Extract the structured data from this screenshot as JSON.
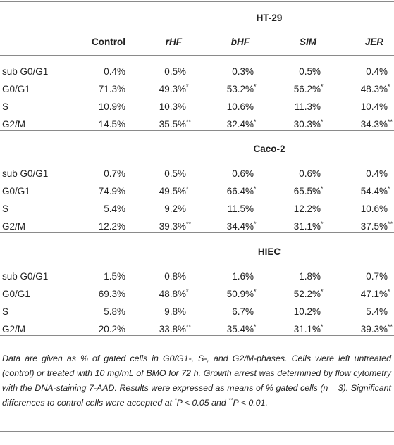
{
  "table": {
    "columns": [
      "Control",
      "rHF",
      "bHF",
      "SIM",
      "JER"
    ],
    "sections": [
      {
        "title": "HT-29",
        "rows": [
          {
            "label": "sub G0/G1",
            "cells": [
              "0.4%",
              "0.5%",
              "0.3%",
              "0.5%",
              "0.4%"
            ]
          },
          {
            "label": "G0/G1",
            "cells": [
              "71.3%",
              {
                "text": "49.3%",
                "mark": "*"
              },
              {
                "text": "53.2%",
                "mark": "*"
              },
              {
                "text": "56.2%",
                "mark": "*"
              },
              {
                "text": "48.3%",
                "mark": "*"
              }
            ]
          },
          {
            "label": "S",
            "cells": [
              "10.9%",
              "10.3%",
              "10.6%",
              "11.3%",
              "10.4%"
            ]
          },
          {
            "label": "G2/M",
            "cells": [
              "14.5%",
              {
                "text": "35.5%",
                "mark": "**"
              },
              {
                "text": "32.4%",
                "mark": "*"
              },
              {
                "text": "30.3%",
                "mark": "*"
              },
              {
                "text": "34.3%",
                "mark": "**"
              }
            ]
          }
        ]
      },
      {
        "title": "Caco-2",
        "rows": [
          {
            "label": "sub G0/G1",
            "cells": [
              "0.7%",
              "0.5%",
              "0.6%",
              "0.6%",
              "0.4%"
            ]
          },
          {
            "label": "G0/G1",
            "cells": [
              "74.9%",
              {
                "text": "49.5%",
                "mark": "*"
              },
              {
                "text": "66.4%",
                "mark": "*"
              },
              {
                "text": "65.5%",
                "mark": "*"
              },
              {
                "text": "54.4%",
                "mark": "*"
              }
            ]
          },
          {
            "label": "S",
            "cells": [
              "5.4%",
              "9.2%",
              "11.5%",
              "12.2%",
              "10.6%"
            ]
          },
          {
            "label": "G2/M",
            "cells": [
              "12.2%",
              {
                "text": "39.3%",
                "mark": "**"
              },
              {
                "text": "34.4%",
                "mark": "*"
              },
              {
                "text": "31.1%",
                "mark": "*"
              },
              {
                "text": "37.5%",
                "mark": "**"
              }
            ]
          }
        ]
      },
      {
        "title": "HIEC",
        "rows": [
          {
            "label": "sub G0/G1",
            "cells": [
              "1.5%",
              "0.8%",
              "1.6%",
              "1.8%",
              "0.7%"
            ]
          },
          {
            "label": "G0/G1",
            "cells": [
              "69.3%",
              {
                "text": "48.8%",
                "mark": "*"
              },
              {
                "text": "50.9%",
                "mark": "*"
              },
              {
                "text": "52.2%",
                "mark": "*"
              },
              {
                "text": "47.1%",
                "mark": "*"
              }
            ]
          },
          {
            "label": "S",
            "cells": [
              "5.8%",
              "9.8%",
              "6.7%",
              "10.2%",
              "5.4%"
            ]
          },
          {
            "label": "G2/M",
            "cells": [
              "20.2%",
              {
                "text": "33.8%",
                "mark": "**"
              },
              {
                "text": "35.4%",
                "mark": "*"
              },
              {
                "text": "31.1%",
                "mark": "*"
              },
              {
                "text": "39.3%",
                "mark": "**"
              }
            ]
          }
        ]
      }
    ]
  },
  "note": [
    {
      "text": "Data are given as % of gated cells in G0/G1-, S-, and G2/M-phases. Cells were left untreated (control) or treated with 10 mg/mL of BMO for 72 h. Growth arrest was determined by flow cytometry with the DNA-staining 7-AAD. Results were expressed as means of % gated cells (n = 3). Significant differences to control cells were accepted at "
    },
    {
      "sup": "*"
    },
    {
      "text": "P < 0.05 and "
    },
    {
      "sup": "**"
    },
    {
      "text": "P < 0.01."
    }
  ]
}
